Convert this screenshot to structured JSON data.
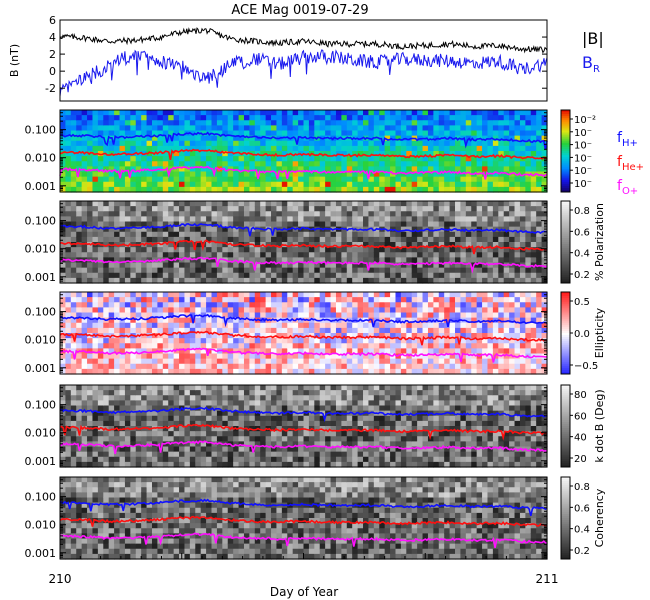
{
  "chart_data": {
    "type": "line",
    "title": "ACE Mag 0019-07-29",
    "xlabel": "Day of Year",
    "x_ticks": [
      "210",
      "211"
    ],
    "xlim": [
      210,
      211
    ],
    "panels": [
      {
        "id": "bfield",
        "ylabel": "B (nT)",
        "ylim": [
          -3.5,
          6
        ],
        "y_ticks": [
          -2,
          0,
          2,
          4,
          6
        ],
        "series": [
          {
            "name": "|B|",
            "color": "#000000",
            "x": [
              210.0,
              210.05,
              210.1,
              210.15,
              210.2,
              210.25,
              210.3,
              210.35,
              210.4,
              210.45,
              210.5,
              210.55,
              210.6,
              210.65,
              210.7,
              210.75,
              210.8,
              210.85,
              210.9,
              210.95,
              211.0
            ],
            "y": [
              4.1,
              3.9,
              3.5,
              3.6,
              3.9,
              4.6,
              4.8,
              3.8,
              3.5,
              3.3,
              3.5,
              3.2,
              3.2,
              3.2,
              2.9,
              3.0,
              3.2,
              2.9,
              3.0,
              2.6,
              2.5
            ]
          },
          {
            "name": "B_R",
            "color": "#1a1aee",
            "x": [
              210.0,
              210.05,
              210.1,
              210.15,
              210.2,
              210.25,
              210.3,
              210.35,
              210.4,
              210.45,
              210.5,
              210.55,
              210.6,
              210.65,
              210.7,
              210.75,
              210.8,
              210.85,
              210.9,
              210.95,
              211.0
            ],
            "y": [
              -2.5,
              -0.8,
              0.6,
              2.0,
              1.2,
              0.5,
              -1.0,
              0.8,
              1.5,
              0.8,
              1.6,
              1.8,
              1.3,
              1.0,
              1.4,
              1.3,
              1.2,
              0.9,
              1.2,
              0.2,
              1.0
            ]
          }
        ],
        "legend": [
          {
            "text": "|B|",
            "sub": "",
            "color": "#000000"
          },
          {
            "text": "B",
            "sub": "R",
            "color": "#1a1aee"
          }
        ]
      },
      {
        "id": "power",
        "ylabel": "",
        "scale": "log",
        "ylim": [
          0.0006,
          0.5
        ],
        "y_ticks": [
          "0.100",
          "0.010",
          "0.001"
        ],
        "colorbar": {
          "ticks": [
            "10⁻²",
            "10⁻",
            "10⁻",
            "10⁻",
            "10⁻",
            "10⁻"
          ],
          "label": "",
          "colormap": "rainbow"
        }
      },
      {
        "id": "polarization",
        "ylabel": "",
        "scale": "log",
        "ylim": [
          0.0006,
          0.5
        ],
        "y_ticks": [
          "0.100",
          "0.010",
          "0.001"
        ],
        "colorbar": {
          "ticks": [
            "0.8",
            "0.6",
            "0.4",
            "0.2"
          ],
          "label": "% Polarization",
          "colormap": "gray"
        }
      },
      {
        "id": "ellipticity",
        "ylabel": "",
        "scale": "log",
        "ylim": [
          0.0006,
          0.5
        ],
        "y_ticks": [
          "0.100",
          "0.010",
          "0.001"
        ],
        "colorbar": {
          "ticks": [
            "0.5",
            "0.0",
            "−0.5"
          ],
          "label": "Ellipticity",
          "colormap": "bwr"
        }
      },
      {
        "id": "kdotb",
        "ylabel": "",
        "scale": "log",
        "ylim": [
          0.0006,
          0.5
        ],
        "y_ticks": [
          "0.100",
          "0.010",
          "0.001"
        ],
        "colorbar": {
          "ticks": [
            "80",
            "60",
            "40",
            "20"
          ],
          "label": "k dot B (Deg)",
          "colormap": "gray"
        }
      },
      {
        "id": "coherency",
        "ylabel": "",
        "scale": "log",
        "ylim": [
          0.0006,
          0.5
        ],
        "y_ticks": [
          "0.100",
          "0.010",
          "0.001"
        ],
        "colorbar": {
          "ticks": [
            "0.8",
            "0.6",
            "0.4",
            "0.2"
          ],
          "label": "Coherency",
          "colormap": "gray"
        }
      }
    ],
    "gyro_series": [
      {
        "name": "f_H+",
        "color": "#1010ff",
        "x": [
          210.0,
          210.05,
          210.1,
          210.15,
          210.2,
          210.25,
          210.3,
          210.35,
          210.4,
          210.45,
          210.5,
          210.55,
          210.6,
          210.65,
          210.7,
          210.75,
          210.8,
          210.85,
          210.9,
          210.95,
          211.0
        ],
        "y": [
          0.062,
          0.06,
          0.053,
          0.055,
          0.06,
          0.07,
          0.073,
          0.058,
          0.053,
          0.05,
          0.053,
          0.049,
          0.049,
          0.049,
          0.044,
          0.046,
          0.049,
          0.044,
          0.046,
          0.04,
          0.038
        ]
      },
      {
        "name": "f_He+",
        "color": "#ff1010",
        "x": [
          210.0,
          210.05,
          210.1,
          210.15,
          210.2,
          210.25,
          210.3,
          210.35,
          210.4,
          210.45,
          210.5,
          210.55,
          210.6,
          210.65,
          210.7,
          210.75,
          210.8,
          210.85,
          210.9,
          210.95,
          211.0
        ],
        "y": [
          0.0155,
          0.015,
          0.0133,
          0.0138,
          0.015,
          0.0175,
          0.0183,
          0.0145,
          0.0133,
          0.0125,
          0.0133,
          0.0122,
          0.0122,
          0.0122,
          0.011,
          0.0115,
          0.0122,
          0.011,
          0.0115,
          0.01,
          0.0095
        ]
      },
      {
        "name": "f_O+",
        "color": "#ff10ff",
        "x": [
          210.0,
          210.05,
          210.1,
          210.15,
          210.2,
          210.25,
          210.3,
          210.35,
          210.4,
          210.45,
          210.5,
          210.55,
          210.6,
          210.65,
          210.7,
          210.75,
          210.8,
          210.85,
          210.9,
          210.95,
          211.0
        ],
        "y": [
          0.0039,
          0.0038,
          0.0033,
          0.0034,
          0.0038,
          0.0044,
          0.0046,
          0.0036,
          0.0033,
          0.0031,
          0.0033,
          0.0031,
          0.0031,
          0.0031,
          0.0028,
          0.0029,
          0.0031,
          0.0028,
          0.0029,
          0.0025,
          0.0024
        ]
      }
    ],
    "gyro_legend": [
      {
        "text": "f",
        "sub": "H+",
        "color": "#1010ff"
      },
      {
        "text": "f",
        "sub": "He+",
        "color": "#ff1010"
      },
      {
        "text": "f",
        "sub": "O+",
        "color": "#ff10ff"
      }
    ]
  }
}
